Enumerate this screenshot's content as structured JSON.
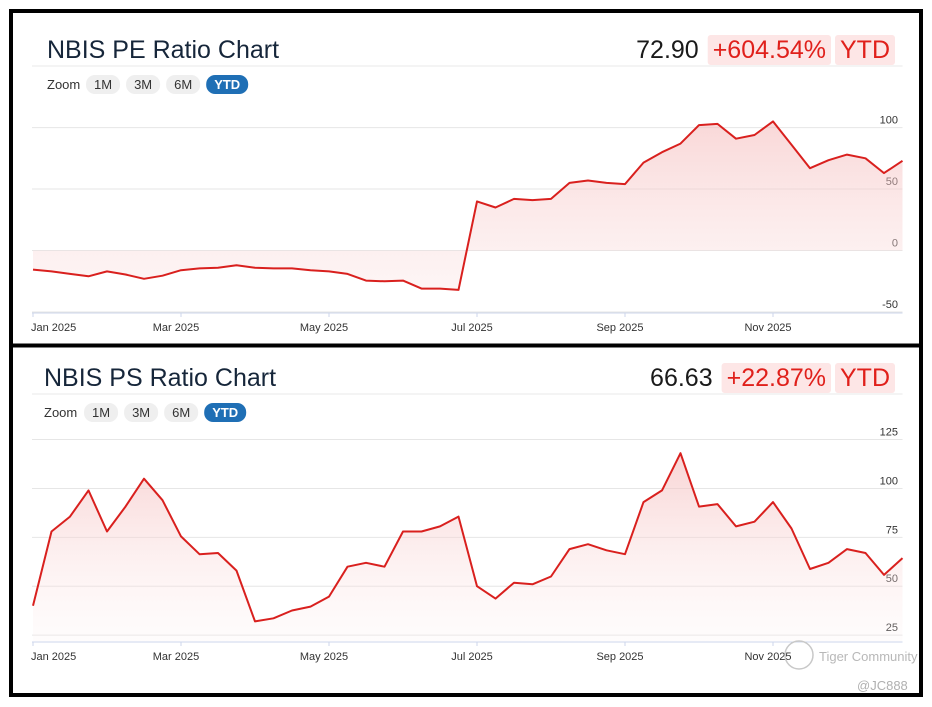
{
  "chart_data": [
    {
      "type": "line",
      "title": "NBIS PE Ratio Chart",
      "price": "72.90",
      "change": "+604.54%",
      "period": "YTD",
      "zoom": {
        "label": "Zoom",
        "options": [
          "1M",
          "3M",
          "6M",
          "YTD"
        ],
        "selected": 3
      },
      "color": "#d9201e",
      "grid": true,
      "categories": [
        "Jan 2025",
        null,
        null,
        null,
        null,
        null,
        null,
        null,
        "Mar 2025",
        null,
        null,
        null,
        null,
        null,
        null,
        null,
        "May 2025",
        null,
        null,
        null,
        null,
        null,
        null,
        null,
        "Jul 2025",
        null,
        null,
        null,
        null,
        null,
        null,
        null,
        "Sep 2025",
        null,
        null,
        null,
        null,
        null,
        null,
        null,
        "Nov 2025",
        null,
        null,
        null,
        null,
        null,
        null,
        null
      ],
      "values": [
        -15.5,
        -17,
        -19,
        -21,
        -17,
        -19.5,
        -23,
        -20.5,
        -16,
        -14.5,
        -14,
        -12,
        -14,
        -14.5,
        -14.5,
        -16,
        -17,
        -19,
        -24.5,
        -25,
        -24.5,
        -31,
        -31,
        -32,
        40,
        35,
        42,
        41,
        42,
        55,
        57,
        55,
        54,
        71.5,
        80,
        87,
        102,
        103,
        91,
        94,
        105,
        86,
        67,
        73.5,
        78,
        75,
        63,
        73
      ],
      "ylim": [
        -50,
        120
      ],
      "yticks": [
        -50,
        0,
        50,
        100
      ]
    },
    {
      "type": "line",
      "title": "NBIS PS Ratio Chart",
      "price": "66.63",
      "change": "+22.87%",
      "period": "YTD",
      "zoom": {
        "label": "Zoom",
        "options": [
          "1M",
          "3M",
          "6M",
          "YTD"
        ],
        "selected": 3
      },
      "color": "#d9201e",
      "grid": true,
      "categories": [
        "Jan 2025",
        null,
        null,
        null,
        null,
        null,
        null,
        null,
        "Mar 2025",
        null,
        null,
        null,
        null,
        null,
        null,
        null,
        "May 2025",
        null,
        null,
        null,
        null,
        null,
        null,
        null,
        "Jul 2025",
        null,
        null,
        null,
        null,
        null,
        null,
        null,
        "Sep 2025",
        null,
        null,
        null,
        null,
        null,
        null,
        null,
        "Nov 2025",
        null,
        null,
        null,
        null,
        null,
        null,
        null
      ],
      "values": [
        40,
        78,
        85.6,
        99,
        78,
        90.7,
        105,
        94,
        75.5,
        66.4,
        67,
        58,
        32,
        33.6,
        37.6,
        39.6,
        44.7,
        60,
        62,
        60,
        78,
        78,
        80.6,
        85.6,
        50,
        43.7,
        51.8,
        51,
        55,
        69,
        71.5,
        68.4,
        66.4,
        93,
        99,
        118,
        90.7,
        92,
        80.6,
        83,
        93,
        79.5,
        58.8,
        62,
        69,
        67,
        55.8,
        64.4
      ],
      "ylim": [
        22,
        135
      ],
      "yticks": [
        25,
        50,
        75,
        100,
        125
      ]
    }
  ],
  "watermark": {
    "brand": "Tiger Community",
    "handle": "@JC888"
  }
}
